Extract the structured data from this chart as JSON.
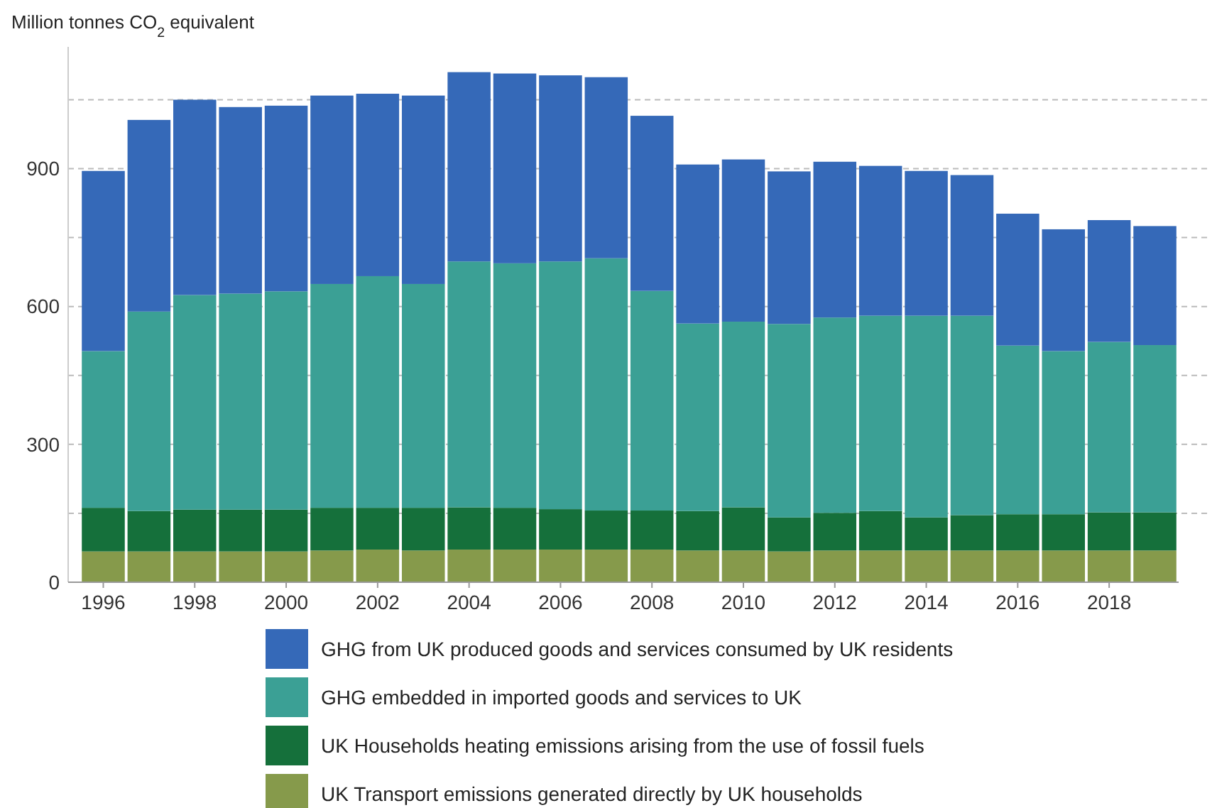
{
  "chart_data": {
    "type": "bar",
    "stacked": true,
    "ylabel": "Million tonnes CO$_{2}$ equivalent",
    "categories": [
      "1996",
      null,
      "1998",
      null,
      "2000",
      null,
      "2002",
      null,
      "2004",
      null,
      "2006",
      null,
      "2008",
      null,
      "2010",
      null,
      "2012",
      null,
      "2014",
      null,
      "2016",
      null,
      "2018",
      null
    ],
    "series": [
      {
        "name": "UK Transport emissions generated directly by UK households",
        "color": "#869a4b",
        "values": [
          67,
          67,
          67,
          67,
          67,
          69,
          71,
          69,
          71,
          71,
          71,
          71,
          71,
          69,
          69,
          67,
          69,
          69,
          69,
          69,
          69,
          69,
          69,
          69
        ]
      },
      {
        "name": "UK Households heating emissions arising from the use of fossil fuels",
        "color": "#15703b",
        "values": [
          95,
          88,
          91,
          91,
          91,
          93,
          91,
          93,
          92,
          91,
          88,
          85,
          85,
          86,
          94,
          74,
          82,
          86,
          72,
          77,
          79,
          79,
          83,
          83
        ]
      },
      {
        "name": "GHG embedded in imported goods and services to UK",
        "color": "#3ba095",
        "values": [
          341,
          434,
          467,
          470,
          475,
          487,
          504,
          487,
          535,
          532,
          539,
          549,
          478,
          408,
          404,
          421,
          425,
          425,
          439,
          434,
          367,
          355,
          371,
          364
        ]
      },
      {
        "name": "GHG from UK produced goods and services consumed by UK residents",
        "color": "#3569b8",
        "values": [
          392,
          417,
          425,
          406,
          404,
          410,
          397,
          410,
          412,
          413,
          405,
          394,
          381,
          346,
          353,
          332,
          339,
          326,
          315,
          306,
          287,
          265,
          265,
          259
        ]
      }
    ],
    "ylim": [
      0,
      1165
    ],
    "yticks": [
      0,
      {
        "value": 150,
        "label": null
      },
      300,
      {
        "value": 450,
        "label": null
      },
      600,
      {
        "value": 750,
        "label": null
      },
      900,
      {
        "value": 1050,
        "label": null
      }
    ],
    "grid": "y",
    "legend": "bottom"
  }
}
